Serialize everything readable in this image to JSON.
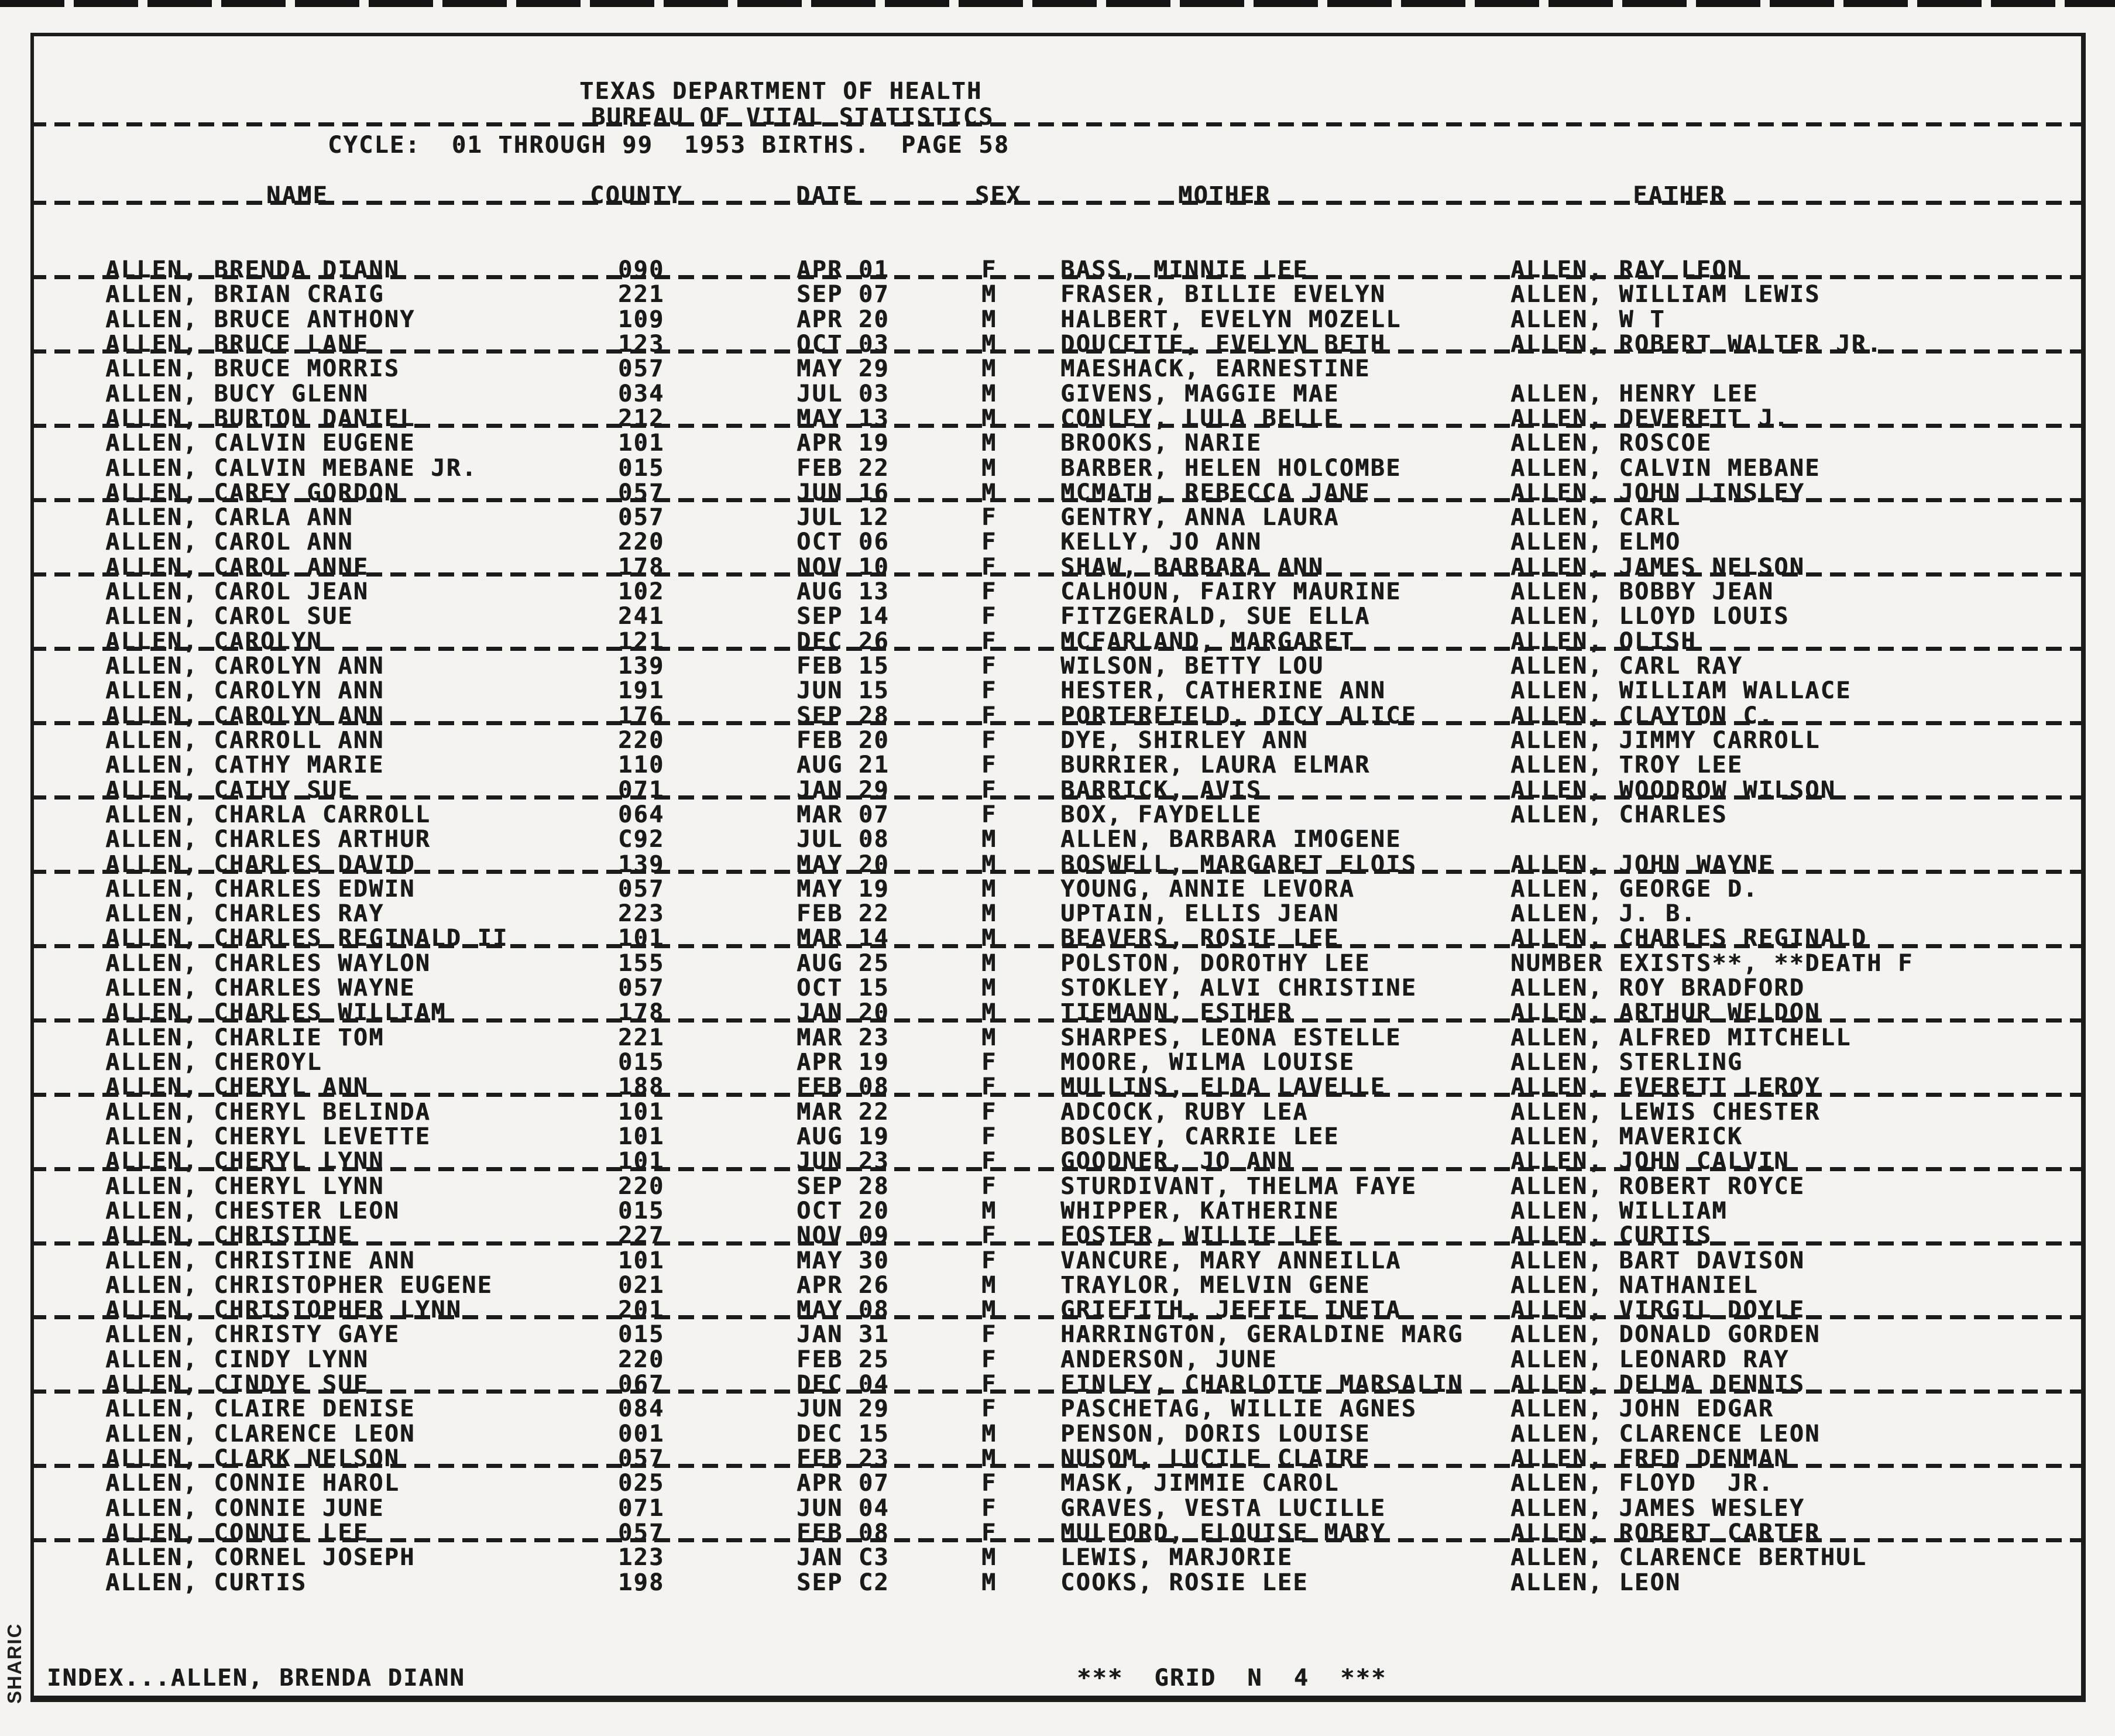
{
  "colors": {
    "ink": "#1a1a1a",
    "paper": "#f4f3f0"
  },
  "header": {
    "agency": "TEXAS DEPARTMENT OF HEALTH",
    "bureau": "BUREAU OF VITAL STATISTICS",
    "cycle_line": "CYCLE:  01 THROUGH 99  1953 BIRTHS.  PAGE 58"
  },
  "columns": {
    "name": "NAME",
    "county": "COUNTY",
    "date": "DATE",
    "sex": "SEX",
    "mother": "MOTHER",
    "father": "FATHER"
  },
  "table": {
    "rows": [
      {
        "name": "ALLEN, BRENDA DIANN",
        "county": "090",
        "date": "APR 01",
        "sex": "F",
        "mother": "BASS, MINNIE LEE",
        "father": "ALLEN, RAY LEON"
      },
      {
        "name": "ALLEN, BRIAN CRAIG",
        "county": "221",
        "date": "SEP 07",
        "sex": "M",
        "mother": "FRASER, BILLIE EVELYN",
        "father": "ALLEN, WILLIAM LEWIS"
      },
      {
        "name": "ALLEN, BRUCE ANTHONY",
        "county": "109",
        "date": "APR 20",
        "sex": "M",
        "mother": "HALBERT, EVELYN MOZELL",
        "father": "ALLEN, W T"
      },
      {
        "name": "ALLEN, BRUCE LANE",
        "county": "123",
        "date": "OCT 03",
        "sex": "M",
        "mother": "DOUCETTE, EVELYN BETH",
        "father": "ALLEN, ROBERT WALTER JR."
      },
      {
        "name": "ALLEN, BRUCE MORRIS",
        "county": "057",
        "date": "MAY 29",
        "sex": "M",
        "mother": "MAESHACK, EARNESTINE",
        "father": ""
      },
      {
        "name": "ALLEN, BUCY GLENN",
        "county": "034",
        "date": "JUL 03",
        "sex": "M",
        "mother": "GIVENS, MAGGIE MAE",
        "father": "ALLEN, HENRY LEE"
      },
      {
        "name": "ALLEN, BURTON DANIEL",
        "county": "212",
        "date": "MAY 13",
        "sex": "M",
        "mother": "CONLEY, LULA BELLE",
        "father": "ALLEN, DEVERETT J."
      },
      {
        "name": "ALLEN, CALVIN EUGENE",
        "county": "101",
        "date": "APR 19",
        "sex": "M",
        "mother": "BROOKS, NARIE",
        "father": "ALLEN, ROSCOE"
      },
      {
        "name": "ALLEN, CALVIN MEBANE JR.",
        "county": "015",
        "date": "FEB 22",
        "sex": "M",
        "mother": "BARBER, HELEN HOLCOMBE",
        "father": "ALLEN, CALVIN MEBANE"
      },
      {
        "name": "ALLEN, CAREY GORDON",
        "county": "057",
        "date": "JUN 16",
        "sex": "M",
        "mother": "MCMATH, REBECCA JANE",
        "father": "ALLEN, JOHN LINSLEY"
      },
      {
        "name": "ALLEN, CARLA ANN",
        "county": "057",
        "date": "JUL 12",
        "sex": "F",
        "mother": "GENTRY, ANNA LAURA",
        "father": "ALLEN, CARL"
      },
      {
        "name": "ALLEN, CAROL ANN",
        "county": "220",
        "date": "OCT 06",
        "sex": "F",
        "mother": "KELLY, JO ANN",
        "father": "ALLEN, ELMO"
      },
      {
        "name": "ALLEN, CAROL ANNE",
        "county": "178",
        "date": "NOV 10",
        "sex": "F",
        "mother": "SHAW, BARBARA ANN",
        "father": "ALLEN, JAMES NELSON"
      },
      {
        "name": "ALLEN, CAROL JEAN",
        "county": "102",
        "date": "AUG 13",
        "sex": "F",
        "mother": "CALHOUN, FAIRY MAURINE",
        "father": "ALLEN, BOBBY JEAN"
      },
      {
        "name": "ALLEN, CAROL SUE",
        "county": "241",
        "date": "SEP 14",
        "sex": "F",
        "mother": "FITZGERALD, SUE ELLA",
        "father": "ALLEN, LLOYD LOUIS"
      },
      {
        "name": "ALLEN, CAROLYN",
        "county": "121",
        "date": "DEC 26",
        "sex": "F",
        "mother": "MCFARLAND, MARGARET",
        "father": "ALLEN, OLISH"
      },
      {
        "name": "ALLEN, CAROLYN ANN",
        "county": "139",
        "date": "FEB 15",
        "sex": "F",
        "mother": "WILSON, BETTY LOU",
        "father": "ALLEN, CARL RAY"
      },
      {
        "name": "ALLEN, CAROLYN ANN",
        "county": "191",
        "date": "JUN 15",
        "sex": "F",
        "mother": "HESTER, CATHERINE ANN",
        "father": "ALLEN, WILLIAM WALLACE"
      },
      {
        "name": "ALLEN, CAROLYN ANN",
        "county": "176",
        "date": "SEP 28",
        "sex": "F",
        "mother": "PORTERFIELD, DICY ALICE",
        "father": "ALLEN, CLAYTON C."
      },
      {
        "name": "ALLEN, CARROLL ANN",
        "county": "220",
        "date": "FEB 20",
        "sex": "F",
        "mother": "DYE, SHIRLEY ANN",
        "father": "ALLEN, JIMMY CARROLL"
      },
      {
        "name": "ALLEN, CATHY MARIE",
        "county": "110",
        "date": "AUG 21",
        "sex": "F",
        "mother": "BURRIER, LAURA ELMAR",
        "father": "ALLEN, TROY LEE"
      },
      {
        "name": "ALLEN, CATHY SUE",
        "county": "071",
        "date": "JAN 29",
        "sex": "F",
        "mother": "BARRICK, AVIS",
        "father": "ALLEN, WOODROW WILSON"
      },
      {
        "name": "ALLEN, CHARLA CARROLL",
        "county": "064",
        "date": "MAR 07",
        "sex": "F",
        "mother": "BOX, FAYDELLE",
        "father": "ALLEN, CHARLES"
      },
      {
        "name": "ALLEN, CHARLES ARTHUR",
        "county": "C92",
        "date": "JUL 08",
        "sex": "M",
        "mother": "ALLEN, BARBARA IMOGENE",
        "father": ""
      },
      {
        "name": "ALLEN, CHARLES DAVID",
        "county": "139",
        "date": "MAY 20",
        "sex": "M",
        "mother": "BOSWELL, MARGARET ELOIS",
        "father": "ALLEN, JOHN WAYNE"
      },
      {
        "name": "ALLEN, CHARLES EDWIN",
        "county": "057",
        "date": "MAY 19",
        "sex": "M",
        "mother": "YOUNG, ANNIE LEVORA",
        "father": "ALLEN, GEORGE D."
      },
      {
        "name": "ALLEN, CHARLES RAY",
        "county": "223",
        "date": "FEB 22",
        "sex": "M",
        "mother": "UPTAIN, ELLIS JEAN",
        "father": "ALLEN, J. B."
      },
      {
        "name": "ALLEN, CHARLES REGINALD II",
        "county": "101",
        "date": "MAR 14",
        "sex": "M",
        "mother": "BEAVERS, ROSIE LEE",
        "father": "ALLEN, CHARLES REGINALD"
      },
      {
        "name": "ALLEN, CHARLES WAYLON",
        "county": "155",
        "date": "AUG 25",
        "sex": "M",
        "mother": "POLSTON, DOROTHY LEE",
        "father": "NUMBER EXISTS**, **DEATH F"
      },
      {
        "name": "ALLEN, CHARLES WAYNE",
        "county": "057",
        "date": "OCT 15",
        "sex": "M",
        "mother": "STOKLEY, ALVI CHRISTINE",
        "father": "ALLEN, ROY BRADFORD"
      },
      {
        "name": "ALLEN, CHARLES WILLIAM",
        "county": "178",
        "date": "JAN 20",
        "sex": "M",
        "mother": "TIEMANN, ESTHER",
        "father": "ALLEN, ARTHUR WELDON"
      },
      {
        "name": "ALLEN, CHARLIE TOM",
        "county": "221",
        "date": "MAR 23",
        "sex": "M",
        "mother": "SHARPES, LEONA ESTELLE",
        "father": "ALLEN, ALFRED MITCHELL"
      },
      {
        "name": "ALLEN, CHEROYL",
        "county": "015",
        "date": "APR 19",
        "sex": "F",
        "mother": "MOORE, WILMA LOUISE",
        "father": "ALLEN, STERLING"
      },
      {
        "name": "ALLEN, CHERYL ANN",
        "county": "188",
        "date": "FEB 08",
        "sex": "F",
        "mother": "MULLINS, ELDA LAVELLE",
        "father": "ALLEN, EVERETT LEROY"
      },
      {
        "name": "ALLEN, CHERYL BELINDA",
        "county": "101",
        "date": "MAR 22",
        "sex": "F",
        "mother": "ADCOCK, RUBY LEA",
        "father": "ALLEN, LEWIS CHESTER"
      },
      {
        "name": "ALLEN, CHERYL LEVETTE",
        "county": "101",
        "date": "AUG 19",
        "sex": "F",
        "mother": "BOSLEY, CARRIE LEE",
        "father": "ALLEN, MAVERICK"
      },
      {
        "name": "ALLEN, CHERYL LYNN",
        "county": "101",
        "date": "JUN 23",
        "sex": "F",
        "mother": "GOODNER, JO ANN",
        "father": "ALLEN, JOHN CALVIN"
      },
      {
        "name": "ALLEN, CHERYL LYNN",
        "county": "220",
        "date": "SEP 28",
        "sex": "F",
        "mother": "STURDIVANT, THELMA FAYE",
        "father": "ALLEN, ROBERT ROYCE"
      },
      {
        "name": "ALLEN, CHESTER LEON",
        "county": "015",
        "date": "OCT 20",
        "sex": "M",
        "mother": "WHIPPER, KATHERINE",
        "father": "ALLEN, WILLIAM"
      },
      {
        "name": "ALLEN, CHRISTINE",
        "county": "227",
        "date": "NOV 09",
        "sex": "F",
        "mother": "FOSTER, WILLIE LEE",
        "father": "ALLEN, CURTIS"
      },
      {
        "name": "ALLEN, CHRISTINE ANN",
        "county": "101",
        "date": "MAY 30",
        "sex": "F",
        "mother": "VANCURE, MARY ANNEILLA",
        "father": "ALLEN, BART DAVISON"
      },
      {
        "name": "ALLEN, CHRISTOPHER EUGENE",
        "county": "021",
        "date": "APR 26",
        "sex": "M",
        "mother": "TRAYLOR, MELVIN GENE",
        "father": "ALLEN, NATHANIEL"
      },
      {
        "name": "ALLEN, CHRISTOPHER LYNN",
        "county": "201",
        "date": "MAY 08",
        "sex": "M",
        "mother": "GRIFFITH, JEFFIE INETA",
        "father": "ALLEN, VIRGIL DOYLE"
      },
      {
        "name": "ALLEN, CHRISTY GAYE",
        "county": "015",
        "date": "JAN 31",
        "sex": "F",
        "mother": "HARRINGTON, GERALDINE MARG",
        "father": "ALLEN, DONALD GORDEN"
      },
      {
        "name": "ALLEN, CINDY LYNN",
        "county": "220",
        "date": "FEB 25",
        "sex": "F",
        "mother": "ANDERSON, JUNE",
        "father": "ALLEN, LEONARD RAY"
      },
      {
        "name": "ALLEN, CINDYE SUE",
        "county": "067",
        "date": "DEC 04",
        "sex": "F",
        "mother": "FINLEY, CHARLOTTE MARSALIN",
        "father": "ALLEN, DELMA DENNIS"
      },
      {
        "name": "ALLEN, CLAIRE DENISE",
        "county": "084",
        "date": "JUN 29",
        "sex": "F",
        "mother": "PASCHETAG, WILLIE AGNES",
        "father": "ALLEN, JOHN EDGAR"
      },
      {
        "name": "ALLEN, CLARENCE LEON",
        "county": "001",
        "date": "DEC 15",
        "sex": "M",
        "mother": "PENSON, DORIS LOUISE",
        "father": "ALLEN, CLARENCE LEON"
      },
      {
        "name": "ALLEN, CLARK NELSON",
        "county": "057",
        "date": "FEB 23",
        "sex": "M",
        "mother": "NUSOM, LUCILE CLAIRE",
        "father": "ALLEN, FRED DENMAN"
      },
      {
        "name": "ALLEN, CONNIE HAROL",
        "county": "025",
        "date": "APR 07",
        "sex": "F",
        "mother": "MASK, JIMMIE CAROL",
        "father": "ALLEN, FLOYD  JR."
      },
      {
        "name": "ALLEN, CONNIE JUNE",
        "county": "071",
        "date": "JUN 04",
        "sex": "F",
        "mother": "GRAVES, VESTA LUCILLE",
        "father": "ALLEN, JAMES WESLEY"
      },
      {
        "name": "ALLEN, CONNIE LEE",
        "county": "057",
        "date": "FEB 08",
        "sex": "F",
        "mother": "MULFORD, ELOUISE MARY",
        "father": "ALLEN, ROBERT CARTER"
      },
      {
        "name": "ALLEN, CORNEL JOSEPH",
        "county": "123",
        "date": "JAN C3",
        "sex": "M",
        "mother": "LEWIS, MARJORIE",
        "father": "ALLEN, CLARENCE BERTHUL"
      },
      {
        "name": "ALLEN, CURTIS",
        "county": "198",
        "date": "SEP C2",
        "sex": "M",
        "mother": "COOKS, ROSIE LEE",
        "father": "ALLEN, LEON"
      }
    ]
  },
  "footer": {
    "index_label": "INDEX...ALLEN, BRENDA DIANN",
    "grid_label": "***  GRID  N  4  ***"
  },
  "side_label": "SHARIC"
}
